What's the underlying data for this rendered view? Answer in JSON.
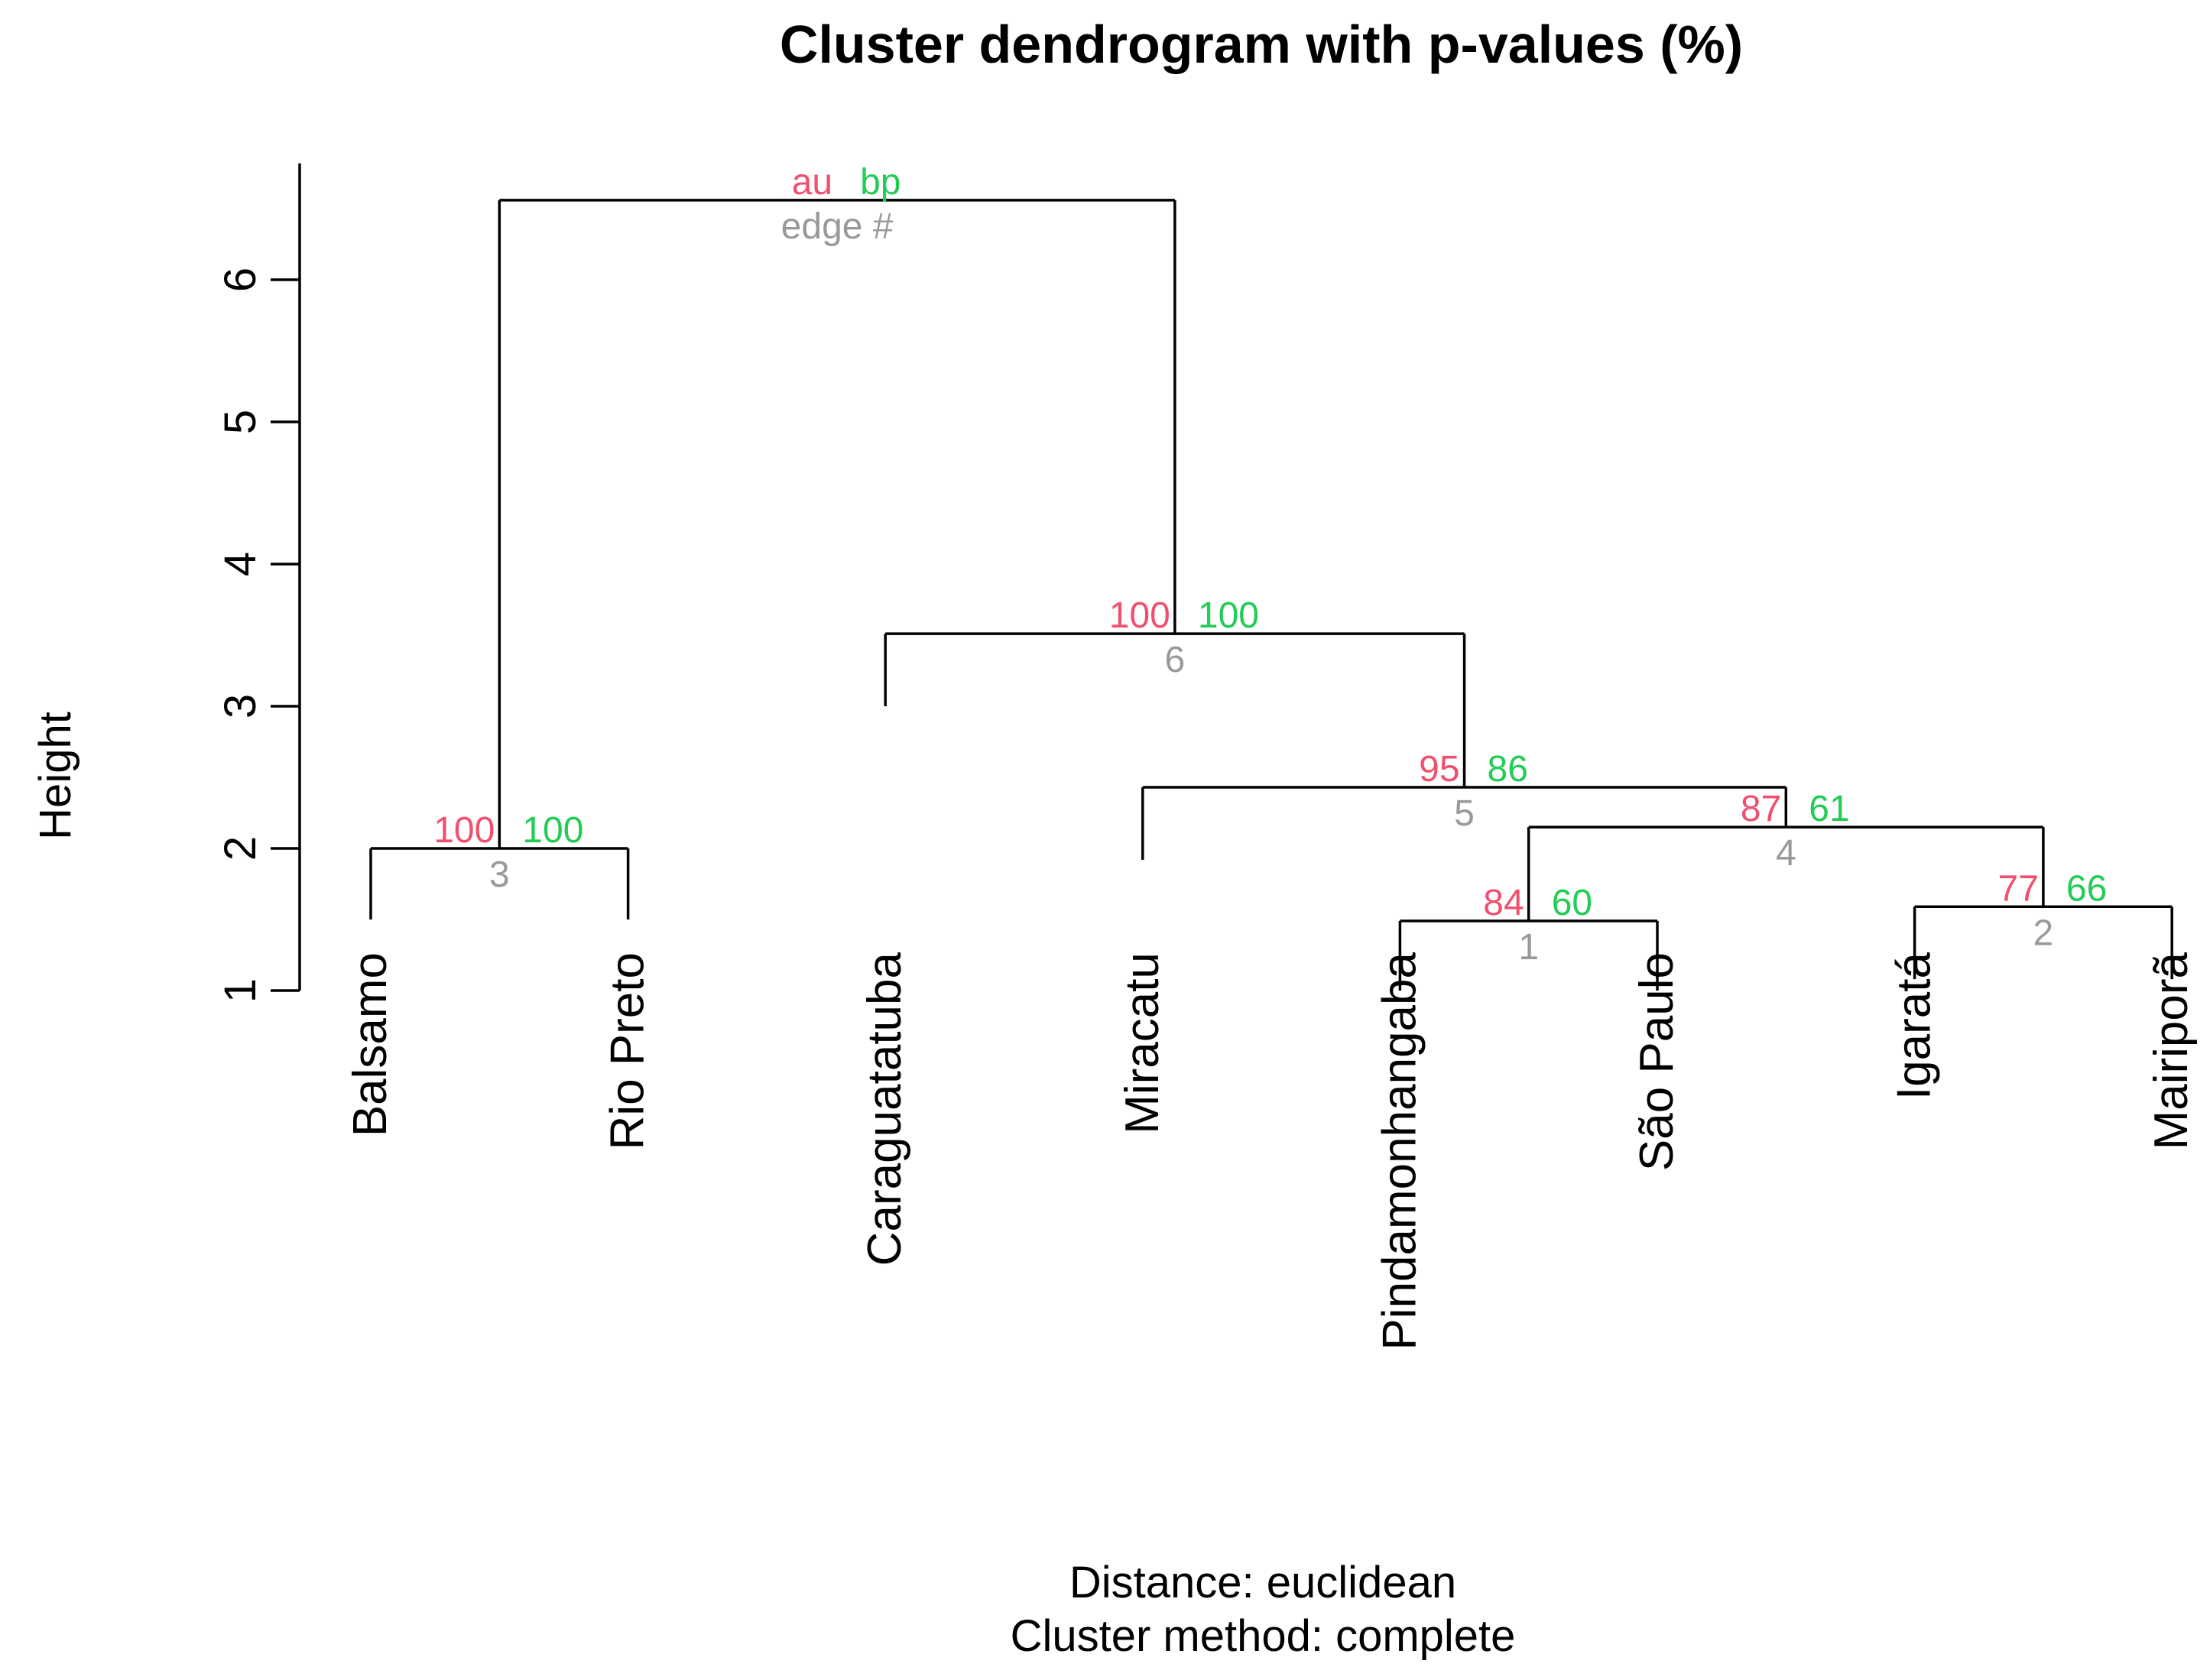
{
  "chart_data": {
    "type": "dendrogram",
    "title": "Cluster dendrogram with p-values (%)",
    "ylabel": "Height",
    "subtitle_lines": [
      "Distance:  euclidean",
      "Cluster method: complete"
    ],
    "yticks": [
      1,
      2,
      3,
      4,
      5,
      6
    ],
    "ylim": [
      1,
      6.55
    ],
    "legend": {
      "au": "au",
      "bp": "bp",
      "edge": "edge #"
    },
    "colors": {
      "au": "#f0506e",
      "bp": "#22cc55",
      "edge": "#999999",
      "line": "#000000"
    },
    "leaves": [
      {
        "id": "L1",
        "label": "Balsamo",
        "height": 1.5
      },
      {
        "id": "L2",
        "label": "Rio Preto",
        "height": 1.5
      },
      {
        "id": "L3",
        "label": "Caraguatatuba",
        "height": 3.0
      },
      {
        "id": "L4",
        "label": "Miracatu",
        "height": 1.92
      },
      {
        "id": "L5",
        "label": "Pindamonhangaba",
        "height": 1.0
      },
      {
        "id": "L6",
        "label": "São Paulo",
        "height": 1.0
      },
      {
        "id": "L7",
        "label": "Igaratá",
        "height": 1.08
      },
      {
        "id": "L8",
        "label": "Mairiporã",
        "height": 1.08
      }
    ],
    "merges": [
      {
        "id": "M1",
        "left": "L5",
        "right": "L6",
        "height": 1.49,
        "au": "84",
        "bp": "60",
        "edge": "1"
      },
      {
        "id": "M2",
        "left": "L7",
        "right": "L8",
        "height": 1.59,
        "au": "77",
        "bp": "66",
        "edge": "2"
      },
      {
        "id": "M3",
        "left": "L1",
        "right": "L2",
        "height": 2.0,
        "au": "100",
        "bp": "100",
        "edge": "3"
      },
      {
        "id": "M4",
        "left": "M1",
        "right": "M2",
        "height": 2.15,
        "au": "87",
        "bp": "61",
        "edge": "4"
      },
      {
        "id": "M5",
        "left": "L4",
        "right": "M4",
        "height": 2.43,
        "au": "95",
        "bp": "86",
        "edge": "5"
      },
      {
        "id": "M6",
        "left": "L3",
        "right": "M5",
        "height": 3.51,
        "au": "100",
        "bp": "100",
        "edge": "6"
      },
      {
        "id": "M7",
        "left": "M3",
        "right": "M6",
        "height": 6.56,
        "au": "au",
        "bp": "bp",
        "edge": "edge #"
      }
    ]
  }
}
